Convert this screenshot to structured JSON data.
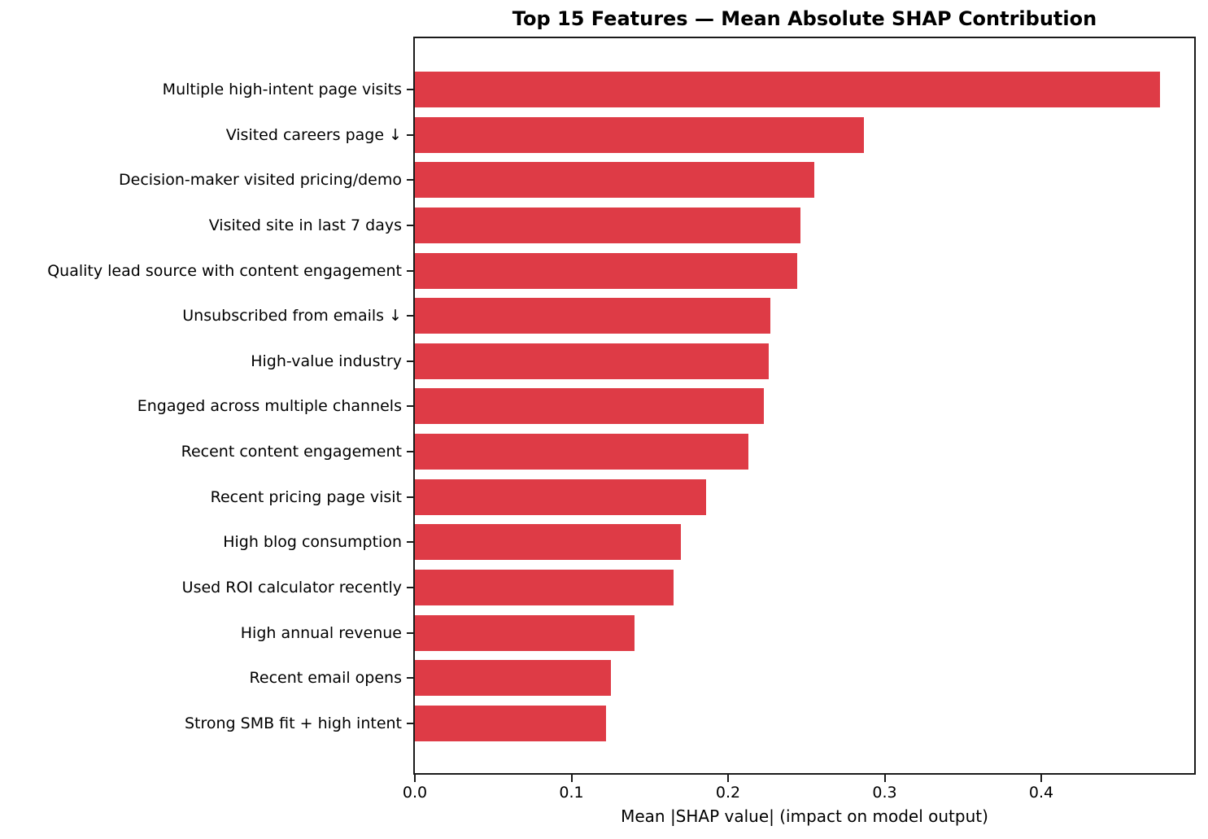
{
  "chart_data": {
    "type": "bar",
    "orientation": "horizontal",
    "title": "Top 15 Features — Mean Absolute SHAP Contribution",
    "xlabel": "Mean |SHAP value| (impact on model output)",
    "categories": [
      "Multiple high-intent page visits",
      "Visited careers page ↓",
      "Decision-maker visited pricing/demo",
      "Visited site in last 7 days",
      "Quality lead source with content engagement",
      "Unsubscribed from emails ↓",
      "High-value industry",
      "Engaged across multiple channels",
      "Recent content engagement",
      "Recent pricing page visit",
      "High blog consumption",
      "Used ROI calculator recently",
      "High annual revenue",
      "Recent email opens",
      "Strong SMB fit + high intent"
    ],
    "values": [
      0.476,
      0.287,
      0.255,
      0.246,
      0.244,
      0.227,
      0.226,
      0.223,
      0.213,
      0.186,
      0.17,
      0.165,
      0.14,
      0.125,
      0.122
    ],
    "xlim": [
      0.0,
      0.499
    ],
    "xticks": [
      0.0,
      0.1,
      0.2,
      0.3,
      0.4
    ],
    "xtick_labels": [
      "0.0",
      "0.1",
      "0.2",
      "0.3",
      "0.4"
    ],
    "grid": false,
    "legend": null,
    "bar_color": "#DE3B46",
    "axis_color": "#1a1a1a",
    "text_color": "#000000",
    "background_color": "#ffffff"
  }
}
